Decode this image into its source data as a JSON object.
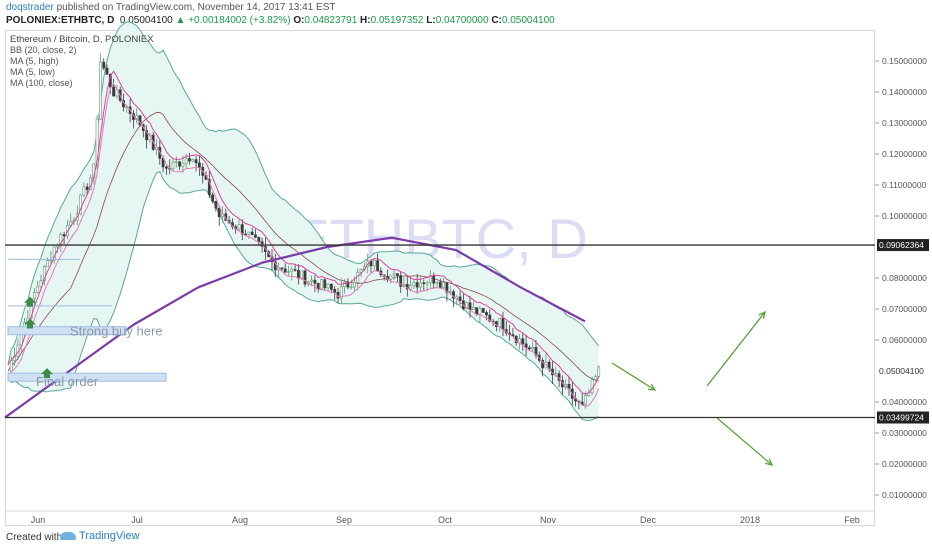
{
  "header": {
    "author": "doqstrader",
    "published": "published on TradingView.com, November 14, 2017 13:41 EST",
    "symbol": "POLONIEX:ETHBTC, D",
    "price": "0.05004100",
    "change": "+0.00184002 (+3.82%)",
    "o_label": "O:",
    "o_value": "0.04823791",
    "h_label": "H:",
    "h_value": "0.05197352",
    "l_label": "L:",
    "l_value": "0.04700000",
    "c_label": "C:",
    "c_value": "0.05004100"
  },
  "legend": {
    "title": "Ethereum / Bitcoin, D, POLONIEX",
    "items": [
      "BB (20, close, 2)",
      "MA (5, high)",
      "MA (5, low)",
      "MA (100, close)"
    ]
  },
  "watermark": {
    "symbol": "ETHBTC, D",
    "subtitle": "Ethereum / Bitcoin"
  },
  "footer": {
    "created": "Created with",
    "brand": "TradingView"
  },
  "colors": {
    "candle_up": "#5a9a6a",
    "candle_down": "#3c3c3c",
    "bb": "#5aa89a",
    "bb_fill": "#e6f6f3",
    "ma_high": "#e040a0",
    "ma_low": "#e878c0",
    "ma100": "#7b3ba8",
    "arrow": "#5aa03a",
    "hline": "#333333",
    "watermark": "#dcdcf4"
  },
  "chart_data": {
    "type": "candlestick",
    "ylim": [
      0.0,
      0.16
    ],
    "y_ticks": [
      "0.01000000",
      "0.02000000",
      "0.03000000",
      "0.04000000",
      "0.05004100",
      "0.06000000",
      "0.07000000",
      "0.08000000",
      "0.09062364",
      "0.10000000",
      "0.11000000",
      "0.12000000",
      "0.13000000",
      "0.14000000",
      "0.15000000"
    ],
    "x_ticks": [
      "Jun",
      "Jul",
      "Aug",
      "Sep",
      "Oct",
      "Nov",
      "Dec",
      "2018",
      "Feb"
    ],
    "horizontal_lines": [
      {
        "value": 0.09062364,
        "label": "0.09062364"
      },
      {
        "value": 0.03499724,
        "label": "0.03499724"
      }
    ],
    "annotations": [
      {
        "text": "Strong buy here",
        "value": 0.063
      },
      {
        "text": "Final order",
        "value": 0.048
      }
    ],
    "series": [
      {
        "name": "MA (100, close)",
        "values": [
          0.035,
          0.05,
          0.065,
          0.077,
          0.085,
          0.09,
          0.093,
          0.089,
          0.077,
          0.066
        ]
      },
      {
        "name": "BB (20, close, 2) upper",
        "values": [
          0.075,
          0.16,
          0.15,
          0.12,
          0.09,
          0.088,
          0.084,
          0.075,
          0.06,
          0.054
        ]
      },
      {
        "name": "BB (20, close, 2) lower",
        "values": [
          0.032,
          0.05,
          0.085,
          0.07,
          0.068,
          0.07,
          0.068,
          0.06,
          0.045,
          0.037
        ]
      }
    ]
  }
}
